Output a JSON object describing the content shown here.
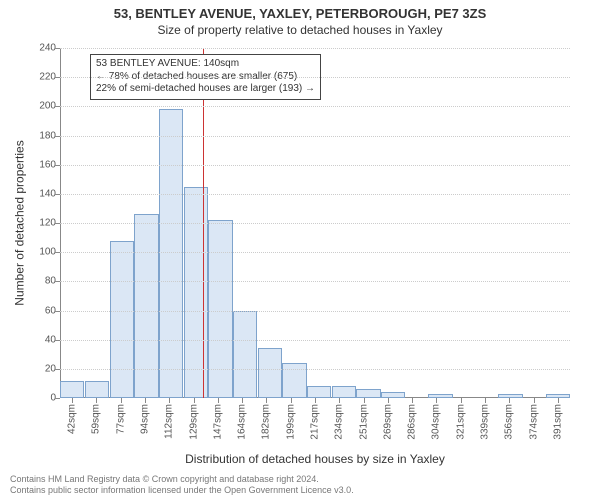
{
  "titles": {
    "line1": "53, BENTLEY AVENUE, YAXLEY, PETERBOROUGH, PE7 3ZS",
    "line2": "Size of property relative to detached houses in Yaxley"
  },
  "y_axis": {
    "title": "Number of detached properties",
    "min": 0,
    "max": 240,
    "step": 20,
    "ticks": [
      0,
      20,
      40,
      60,
      80,
      100,
      120,
      140,
      160,
      180,
      200,
      220,
      240
    ]
  },
  "x_axis": {
    "title": "Distribution of detached houses by size in Yaxley",
    "labels": [
      "42sqm",
      "59sqm",
      "77sqm",
      "94sqm",
      "112sqm",
      "129sqm",
      "147sqm",
      "164sqm",
      "182sqm",
      "199sqm",
      "217sqm",
      "234sqm",
      "251sqm",
      "269sqm",
      "286sqm",
      "304sqm",
      "321sqm",
      "339sqm",
      "356sqm",
      "374sqm",
      "391sqm"
    ]
  },
  "bars": {
    "values": [
      12,
      12,
      108,
      126,
      198,
      145,
      122,
      60,
      34,
      24,
      8,
      8,
      6,
      4,
      0,
      3,
      0,
      0,
      3,
      0,
      3
    ],
    "fill": "#dbe7f5",
    "border": "#7ea3cc"
  },
  "reference": {
    "value_sqm": 140,
    "min_sqm": 42,
    "max_sqm": 391,
    "line_color": "#cc3333"
  },
  "annotation": {
    "line1": "53 BENTLEY AVENUE: 140sqm",
    "line2": "← 78% of detached houses are smaller (675)",
    "line3": "22% of semi-detached houses are larger (193) →"
  },
  "footer": {
    "line1": "Contains HM Land Registry data © Crown copyright and database right 2024.",
    "line2": "Contains public sector information licensed under the Open Government Licence v3.0."
  },
  "style": {
    "background": "#ffffff",
    "grid_color": "#cccccc",
    "axis_color": "#888888",
    "text_color": "#333333"
  }
}
